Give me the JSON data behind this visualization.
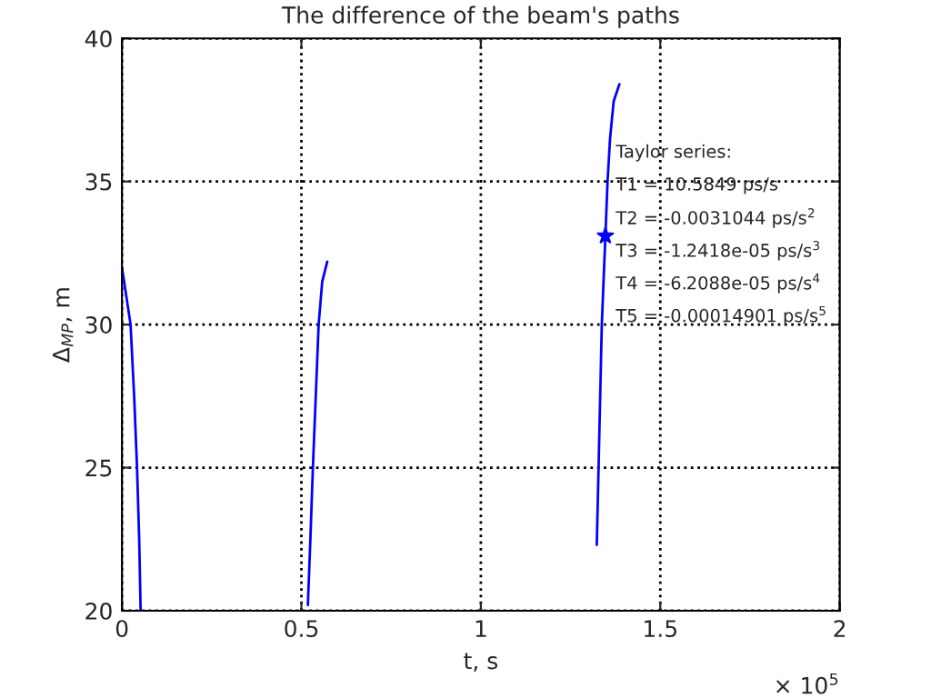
{
  "chart_data": {
    "type": "line",
    "title": "The difference of the beam's paths",
    "xlabel": "t, s",
    "ylabel": "Δ$_{MP}$, m",
    "xlim": [
      0,
      2
    ],
    "ylim": [
      20,
      40
    ],
    "xticks": [
      0,
      0.5,
      1,
      1.5,
      2
    ],
    "yticks": [
      20,
      25,
      30,
      35,
      40
    ],
    "grid": true,
    "line_style": "solid",
    "series": [
      {
        "color": "#0000ff",
        "x": [
          0,
          0.012,
          0.024,
          0.034,
          0.042,
          0.048,
          0.052
        ],
        "values": [
          32.0,
          31.0,
          30.0,
          27.5,
          25.0,
          22.5,
          20.0
        ]
      },
      {
        "color": "#0000ff",
        "x": [
          0.518,
          0.525,
          0.532,
          0.54,
          0.548,
          0.558,
          0.572
        ],
        "values": [
          20.2,
          22.5,
          25.0,
          27.5,
          30.0,
          31.5,
          32.2
        ]
      },
      {
        "color": "#0000ff",
        "x": [
          1.323,
          1.328,
          1.337,
          1.347,
          1.353,
          1.36,
          1.37,
          1.386
        ],
        "values": [
          22.3,
          25.0,
          30.0,
          33.1,
          35.0,
          36.5,
          37.8,
          38.4
        ]
      },
      {
        "type": "scatter",
        "color": "#0000ff",
        "marker": "star",
        "x": [
          1.347
        ],
        "values": [
          33.1
        ]
      }
    ],
    "annotations": [
      "Taylor series:",
      "T1 = 10.5849 ps/s",
      "T2 = -0.0031044 ps/s$^{2}$",
      "T3 = -1.2418e-05 ps/s$^{3}$",
      "T4 = -6.2088e-05 ps/s$^{4}$",
      "T5 = -0.00014901 ps/s$^{5}$",
      "× 10$^{5}$"
    ]
  }
}
